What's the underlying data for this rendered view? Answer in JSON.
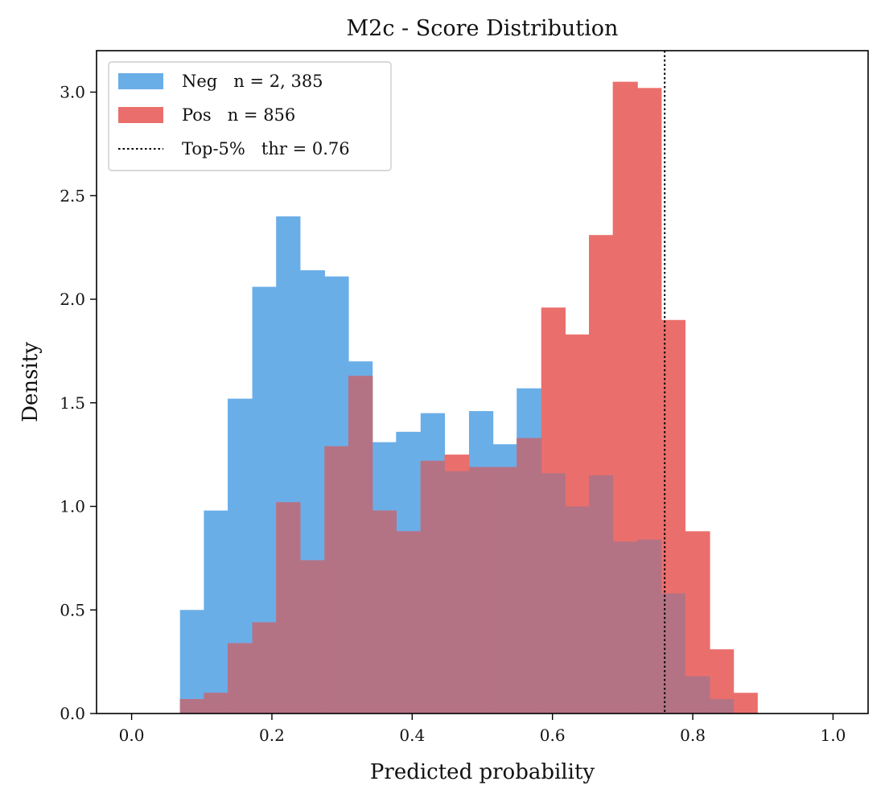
{
  "chart_data": {
    "type": "bar",
    "title": "M2c - Score Distribution",
    "xlabel": "Predicted probability",
    "ylabel": "Density",
    "xlim": [
      -0.05,
      1.05
    ],
    "ylim": [
      0,
      3.2
    ],
    "xticks": [
      0.0,
      0.2,
      0.4,
      0.6,
      0.8,
      1.0
    ],
    "xtick_labels": [
      "0.0",
      "0.2",
      "0.4",
      "0.6",
      "0.8",
      "1.0"
    ],
    "yticks": [
      0.0,
      0.5,
      1.0,
      1.5,
      2.0,
      2.5,
      3.0
    ],
    "ytick_labels": [
      "0.0",
      "0.5",
      "1.0",
      "1.5",
      "2.0",
      "2.5",
      "3.0"
    ],
    "grid": false,
    "legend_position": "top-left",
    "bin_edges": [
      0.069,
      0.103,
      0.137,
      0.172,
      0.206,
      0.24,
      0.275,
      0.309,
      0.343,
      0.377,
      0.412,
      0.446,
      0.481,
      0.515,
      0.549,
      0.584,
      0.618,
      0.652,
      0.686,
      0.721,
      0.755,
      0.789,
      0.824,
      0.858,
      0.892
    ],
    "series": [
      {
        "name": "Neg",
        "legend_label": "Neg   n = 2, 385",
        "color": "#6aaee8",
        "values": [
          0.5,
          0.98,
          1.52,
          2.06,
          2.4,
          2.14,
          2.11,
          1.7,
          1.31,
          1.36,
          1.45,
          1.17,
          1.46,
          1.3,
          1.57,
          1.16,
          1.0,
          1.15,
          0.83,
          0.84,
          0.58,
          0.18,
          0.07,
          0.0
        ]
      },
      {
        "name": "Pos",
        "legend_label": "Pos   n = 856",
        "color": "#ea6f6c",
        "values": [
          0.07,
          0.1,
          0.34,
          0.44,
          1.02,
          0.74,
          1.29,
          1.63,
          0.98,
          0.88,
          1.22,
          1.25,
          1.19,
          1.19,
          1.33,
          1.96,
          1.83,
          2.31,
          3.05,
          3.02,
          1.9,
          0.88,
          0.31,
          0.1
        ]
      }
    ],
    "threshold": {
      "x": 0.76,
      "legend_label": "Top-5%   thr = 0.76",
      "style": "dotted",
      "color": "#000000"
    }
  }
}
